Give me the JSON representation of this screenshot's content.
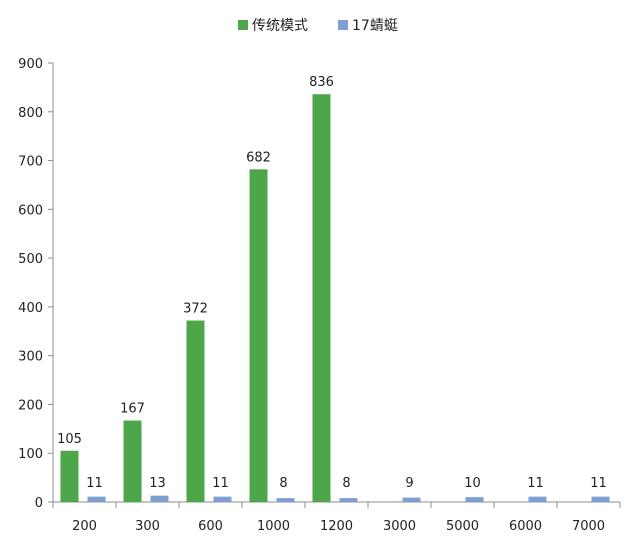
{
  "chart_data": {
    "type": "bar",
    "categories": [
      "200",
      "300",
      "600",
      "1000",
      "1200",
      "3000",
      "5000",
      "6000",
      "7000"
    ],
    "series": [
      {
        "name": "传统模式",
        "values": [
          105,
          167,
          372,
          682,
          836,
          null,
          null,
          null,
          null
        ],
        "color": "#4ea64a"
      },
      {
        "name": "17蜻蜓",
        "values": [
          11,
          13,
          11,
          8,
          8,
          9,
          10,
          11,
          11
        ],
        "color": "#7f9fd3"
      }
    ],
    "ylim": [
      0,
      900
    ],
    "yticks": [
      0,
      100,
      200,
      300,
      400,
      500,
      600,
      700,
      800,
      900
    ],
    "legend_position": "top-center",
    "grid": false,
    "data_labels": true
  }
}
